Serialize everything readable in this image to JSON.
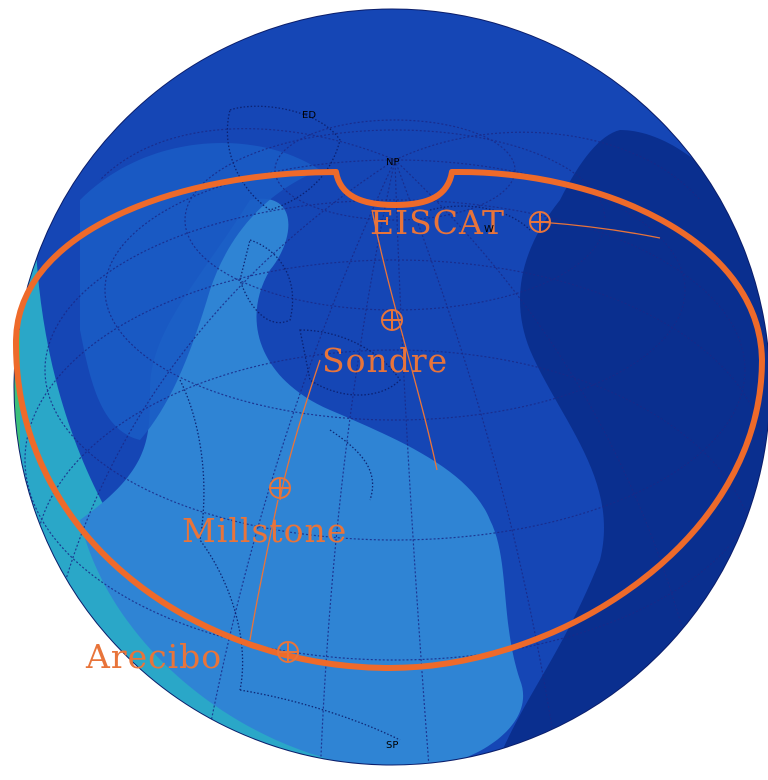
{
  "map": {
    "colors": {
      "background": "#ffffff",
      "deep_blue": "#0a2f8f",
      "mid_blue": "#1546b5",
      "light_blue": "#2f84d4",
      "cyan": "#2aa7c8",
      "green": "#3cc07a",
      "yellow": "#e6df2e",
      "grid": "#1a2a88",
      "coast": "#0b1e6b",
      "track": "#e8743a",
      "ring": "#ee6a2a"
    },
    "pole_labels": {
      "np": "NP",
      "sp": "SP",
      "ed": "ED",
      "w": "W"
    },
    "sites": [
      {
        "name": "EISCAT",
        "label": "EISCAT"
      },
      {
        "name": "Sondre",
        "label": "Sondre"
      },
      {
        "name": "Millstone",
        "label": "Millstone"
      },
      {
        "name": "Arecibo",
        "label": "Arecibo"
      }
    ]
  }
}
